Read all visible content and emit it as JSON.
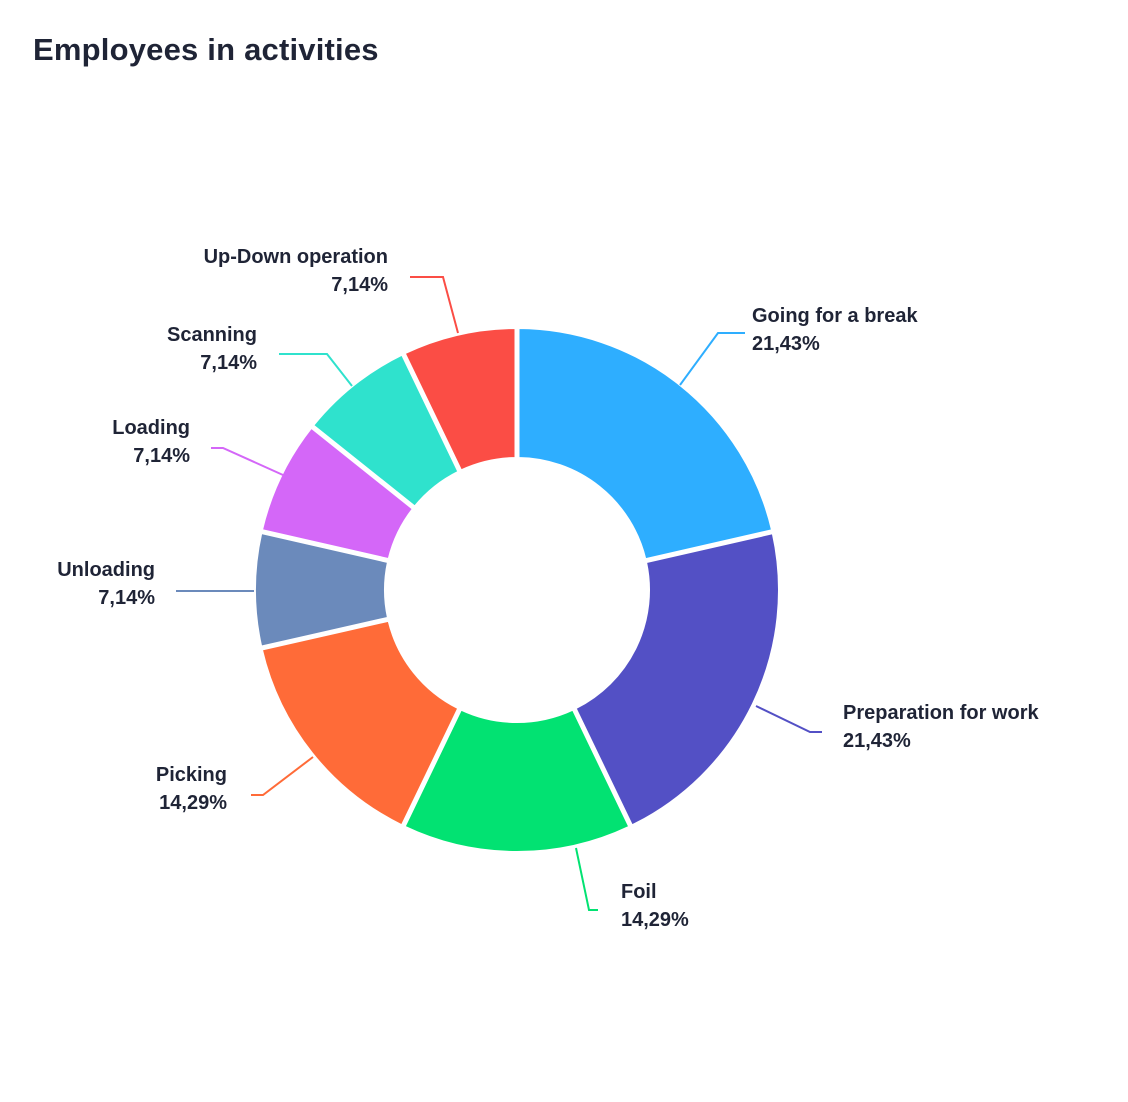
{
  "title": "Employees in activities",
  "chart_data": {
    "type": "pie",
    "variant": "donut",
    "title": "Employees in activities",
    "slices": [
      {
        "name": "Going for a break",
        "value": 21.43,
        "label": "21,43%",
        "color": "#2eaeff"
      },
      {
        "name": "Preparation for work",
        "value": 21.43,
        "label": "21,43%",
        "color": "#5350c5"
      },
      {
        "name": "Foil",
        "value": 14.29,
        "label": "14,29%",
        "color": "#02e272"
      },
      {
        "name": "Picking",
        "value": 14.29,
        "label": "14,29%",
        "color": "#ff6b38"
      },
      {
        "name": "Unloading",
        "value": 7.14,
        "label": "7,14%",
        "color": "#6b8abb"
      },
      {
        "name": "Loading",
        "value": 7.14,
        "label": "7,14%",
        "color": "#d467f8"
      },
      {
        "name": "Scanning",
        "value": 7.14,
        "label": "7,14%",
        "color": "#2fe2cd"
      },
      {
        "name": "Up-Down operation",
        "value": 7.14,
        "label": "7,14%",
        "color": "#fb4d45"
      }
    ]
  }
}
